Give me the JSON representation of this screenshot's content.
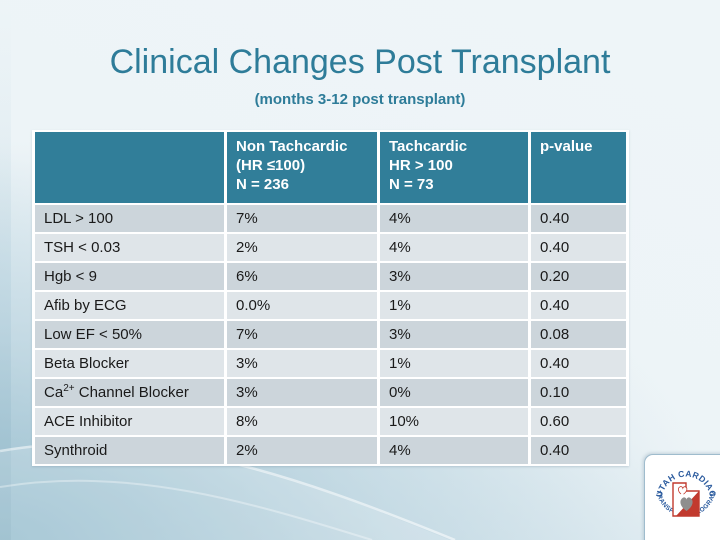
{
  "slide": {
    "title": "Clinical Changes Post Transplant",
    "subtitle": "(months 3-12 post transplant)"
  },
  "table": {
    "header": {
      "blank": "",
      "non_tachcardic_lines": [
        "Non Tachcardic",
        "(HR ≤100)",
        "N = 236"
      ],
      "tachcardic_lines": [
        "Tachcardic",
        "HR > 100",
        "N = 73"
      ],
      "p_value": "p-value"
    },
    "columns": [
      "label",
      "non_tachcardic",
      "tachcardic",
      "p_value"
    ],
    "rows": [
      {
        "label": "LDL > 100",
        "non_tachcardic": "7%",
        "tachcardic": "4%",
        "p_value": "0.40"
      },
      {
        "label": "TSH < 0.03",
        "non_tachcardic": "2%",
        "tachcardic": "4%",
        "p_value": "0.40"
      },
      {
        "label": "Hgb < 9",
        "non_tachcardic": "6%",
        "tachcardic": "3%",
        "p_value": "0.20"
      },
      {
        "label": "Afib by ECG",
        "non_tachcardic": "0.0%",
        "tachcardic": "1%",
        "p_value": "0.40"
      },
      {
        "label": "Low EF < 50%",
        "non_tachcardic": "7%",
        "tachcardic": "3%",
        "p_value": "0.08"
      },
      {
        "label": "Beta Blocker",
        "non_tachcardic": "3%",
        "tachcardic": "1%",
        "p_value": "0.40"
      },
      {
        "label": "Ca^{2+} Channel Blocker",
        "non_tachcardic": "3%",
        "tachcardic": "0%",
        "p_value": "0.10"
      },
      {
        "label": "ACE Inhibitor",
        "non_tachcardic": "8%",
        "tachcardic": "10%",
        "p_value": "0.60"
      },
      {
        "label": "Synthroid",
        "non_tachcardic": "2%",
        "tachcardic": "4%",
        "p_value": "0.40"
      }
    ]
  },
  "logo": {
    "top_text": "UTAH CARDIAC",
    "bottom_text": "TRANSPLANT PROGRAM"
  },
  "colors": {
    "title_teal": "#2E7C99",
    "header_bg": "#317E99",
    "header_text": "#FFFFFF",
    "row_odd_bg": "#CCD5DB",
    "row_even_bg": "#DFE5E9",
    "row_text": "#1A1A1A",
    "logo_blue": "#2B5B9E",
    "logo_red": "#C13A2E",
    "logo_gray": "#8E8E8E"
  }
}
